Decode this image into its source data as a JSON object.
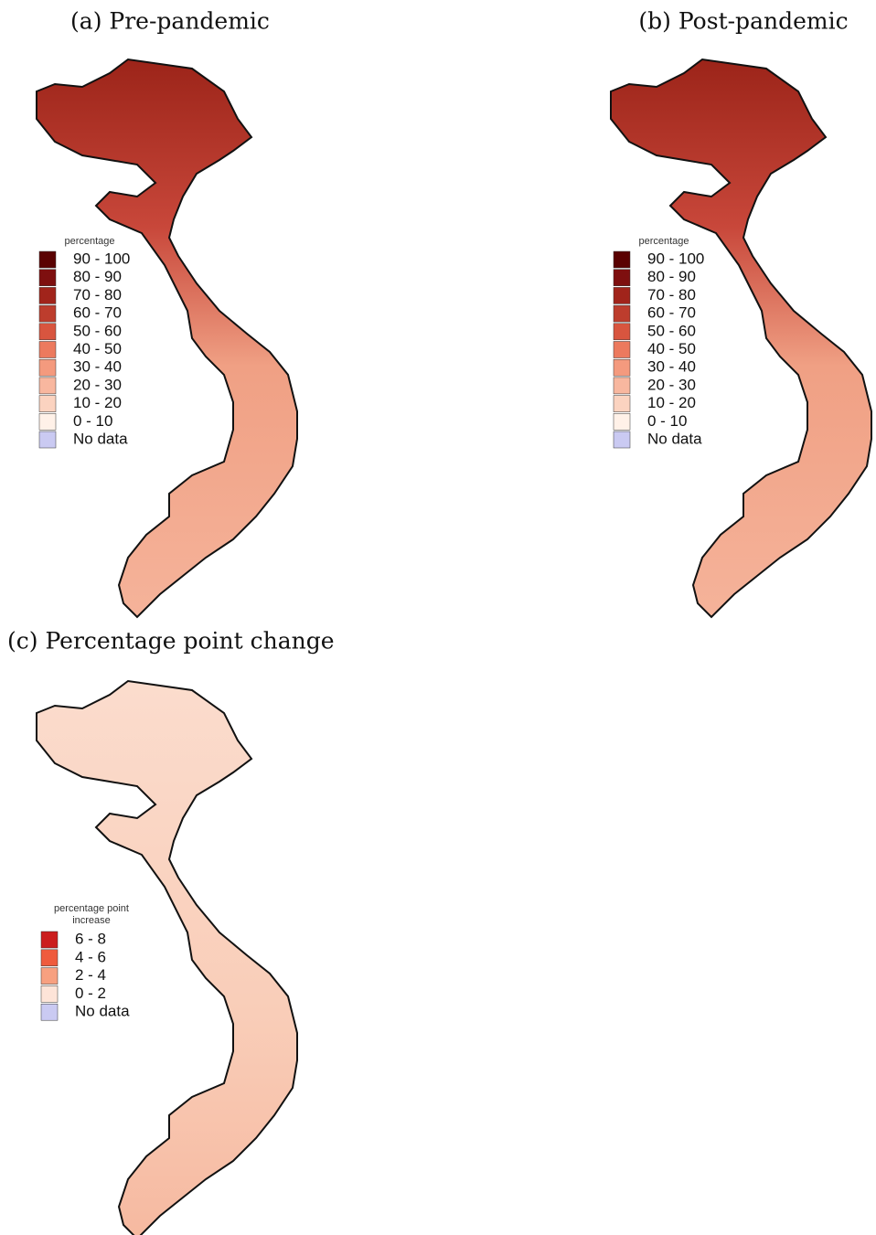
{
  "panels": [
    {
      "title": "(a) Pre-pandemic",
      "legend": {
        "title_lines": [
          "percentage"
        ],
        "items": [
          {
            "label": "90 - 100",
            "color": "#5a0202"
          },
          {
            "label": "80 - 90",
            "color": "#7e0f0f"
          },
          {
            "label": "70 - 80",
            "color": "#a1241b"
          },
          {
            "label": "60 - 70",
            "color": "#bd3d2d"
          },
          {
            "label": "50 - 60",
            "color": "#d8553f"
          },
          {
            "label": "40 - 50",
            "color": "#ec7a5e"
          },
          {
            "label": "30 - 40",
            "color": "#f49a7e"
          },
          {
            "label": "20 - 30",
            "color": "#f8b79f"
          },
          {
            "label": "10 - 20",
            "color": "#fbd3c0"
          },
          {
            "label": "0 - 10",
            "color": "#fff1e8"
          },
          {
            "label": "No data",
            "color": "#cacaf2"
          }
        ]
      }
    },
    {
      "title": "(b) Post-pandemic",
      "legend": {
        "title_lines": [
          "percentage"
        ],
        "items": [
          {
            "label": "90 - 100",
            "color": "#5a0202"
          },
          {
            "label": "80 - 90",
            "color": "#7e0f0f"
          },
          {
            "label": "70 - 80",
            "color": "#a1241b"
          },
          {
            "label": "60 - 70",
            "color": "#bd3d2d"
          },
          {
            "label": "50 - 60",
            "color": "#d8553f"
          },
          {
            "label": "40 - 50",
            "color": "#ec7a5e"
          },
          {
            "label": "30 - 40",
            "color": "#f49a7e"
          },
          {
            "label": "20 - 30",
            "color": "#f8b79f"
          },
          {
            "label": "10 - 20",
            "color": "#fbd3c0"
          },
          {
            "label": "0 - 10",
            "color": "#fff1e8"
          },
          {
            "label": "No data",
            "color": "#cacaf2"
          }
        ]
      }
    },
    {
      "title": "(c) Percentage point change",
      "legend": {
        "title_lines": [
          "percentage point",
          "increase"
        ],
        "items": [
          {
            "label": "6 - 8",
            "color": "#cb1d1d"
          },
          {
            "label": "4 - 6",
            "color": "#ef5b3d"
          },
          {
            "label": "2 - 4",
            "color": "#f7a080"
          },
          {
            "label": "0 - 2",
            "color": "#fde4d8"
          },
          {
            "label": "No data",
            "color": "#cacaf2"
          }
        ]
      }
    }
  ]
}
